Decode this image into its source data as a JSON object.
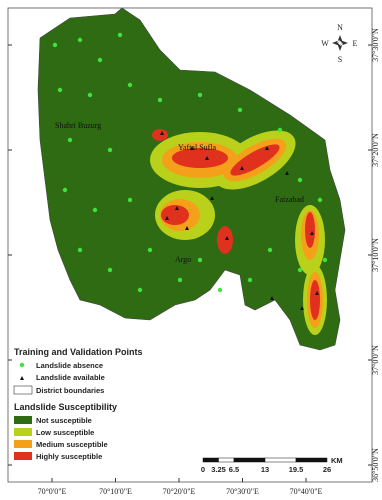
{
  "latitude_labels": [
    "37°30'0\"N",
    "37°20'0\"N",
    "37°10'0\"N",
    "37°0'0\"N",
    "36°50'0\"N"
  ],
  "longitude_labels": [
    "70°0'0\"E",
    "70°10'0\"E",
    "70°20'0\"E",
    "70°30'0\"E",
    "70°40'0\"E"
  ],
  "places": [
    "Shahri Buzurg",
    "Yaftal Sufla",
    "Faizabad",
    "Argo"
  ],
  "compass": {
    "n": "N",
    "e": "E",
    "s": "S",
    "w": "W"
  },
  "legend": {
    "points_title": "Training and Validation Points",
    "absence": "Landslide absence",
    "available": "Landslide available",
    "boundaries": "District boundaries",
    "susceptibility_title": "Landslide Susceptibility",
    "classes": [
      "Not susceptible",
      "Low susceptible",
      "Medium susceptible",
      "Highly susceptible"
    ]
  },
  "scale_bar": {
    "labels": [
      0,
      3.25,
      6.5,
      13,
      19.5,
      26
    ],
    "unit": "KM"
  }
}
